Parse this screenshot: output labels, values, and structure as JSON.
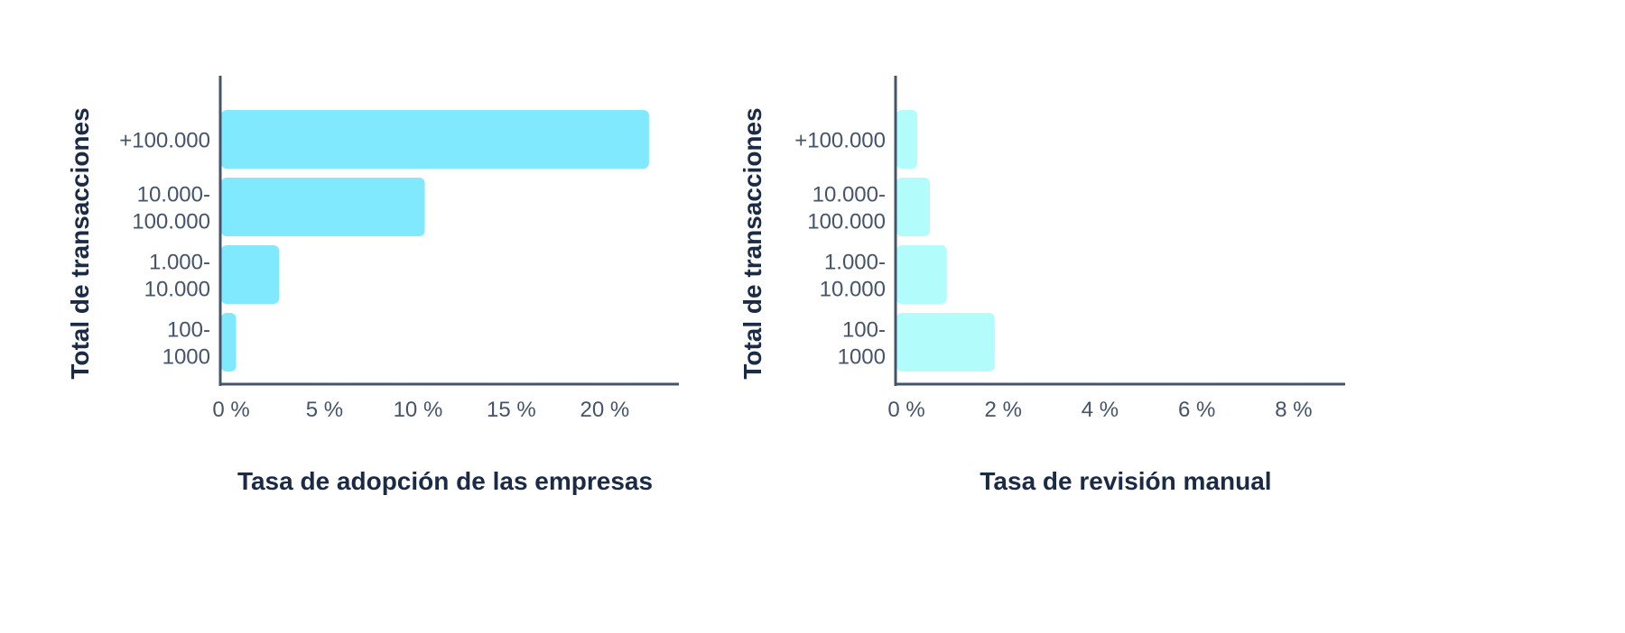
{
  "chart_data": [
    {
      "type": "bar",
      "orientation": "horizontal",
      "categories": [
        "+100.000",
        "10.000-\n100.000",
        "1.000-\n10.000",
        "100-\n1000"
      ],
      "values": [
        22.9,
        10.9,
        3.1,
        0.8
      ],
      "xlabel": "Tasa de adopción de las empresas",
      "ylabel": "Total de transacciones",
      "xticks": [
        0,
        5,
        10,
        15,
        20
      ],
      "tick_labels": [
        "0 %",
        "5 %",
        "10 %",
        "15 %",
        "20 %"
      ],
      "xlim": [
        0,
        24.5
      ],
      "grid": false,
      "color": "#80E9FE"
    },
    {
      "type": "bar",
      "orientation": "horizontal",
      "categories": [
        "+100.000",
        "10.000-\n100.000",
        "1.000-\n10.000",
        "100-\n1000"
      ],
      "values": [
        0.43,
        0.69,
        1.04,
        2.03
      ],
      "xlabel": "Tasa de revisión manual",
      "ylabel": "Total de transacciones",
      "xticks": [
        0,
        2,
        4,
        6,
        8
      ],
      "tick_labels": [
        "0 %",
        "2 %",
        "4 %",
        "6 %",
        "8 %"
      ],
      "xlim": [
        0,
        9.27
      ],
      "grid": false,
      "color": "#B3FCFC"
    }
  ],
  "colors": {
    "axis": "#44546a",
    "title": "#1b2b45"
  }
}
